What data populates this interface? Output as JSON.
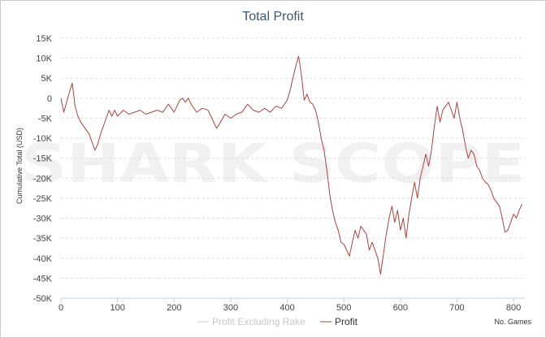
{
  "chart_data": {
    "type": "line",
    "title": "Total Profit",
    "xlabel": "No. Games",
    "ylabel": "Cumulative Total (USD)",
    "xlim": [
      0,
      820
    ],
    "ylim": [
      -50000,
      15000
    ],
    "x_ticks": [
      0,
      100,
      200,
      300,
      400,
      500,
      600,
      700,
      800
    ],
    "y_ticks": [
      15000,
      10000,
      5000,
      0,
      -5000,
      -10000,
      -15000,
      -20000,
      -25000,
      -30000,
      -35000,
      -40000,
      -45000,
      -50000
    ],
    "x_tick_labels": [
      "0",
      "100",
      "200",
      "300",
      "400",
      "500",
      "600",
      "700",
      "800"
    ],
    "y_tick_labels": [
      "15K",
      "10K",
      "5K",
      "0",
      "-5K",
      "-10K",
      "-15K",
      "-20K",
      "-25K",
      "-30K",
      "-35K",
      "-40K",
      "-45K",
      "-50K"
    ],
    "grid": "horizontal dashed",
    "legend_position": "bottom-center",
    "watermark": "SHARK SCOPE",
    "series": [
      {
        "name": "Profit Excluding Rake",
        "color": "#d3d3d3",
        "visible": false,
        "x": [],
        "y": []
      },
      {
        "name": "Profit",
        "color": "#a94442",
        "visible": true,
        "x": [
          0,
          5,
          10,
          15,
          20,
          25,
          30,
          35,
          40,
          45,
          50,
          55,
          60,
          65,
          70,
          75,
          80,
          85,
          90,
          95,
          100,
          110,
          120,
          130,
          140,
          150,
          160,
          170,
          180,
          190,
          200,
          210,
          215,
          220,
          225,
          230,
          240,
          250,
          260,
          270,
          275,
          280,
          290,
          300,
          310,
          320,
          330,
          340,
          350,
          360,
          370,
          380,
          390,
          395,
          400,
          405,
          410,
          415,
          420,
          425,
          430,
          435,
          440,
          445,
          450,
          455,
          460,
          465,
          470,
          475,
          480,
          485,
          490,
          495,
          500,
          505,
          510,
          515,
          520,
          525,
          530,
          540,
          545,
          550,
          555,
          560,
          565,
          570,
          575,
          580,
          585,
          590,
          595,
          600,
          605,
          610,
          615,
          620,
          625,
          630,
          635,
          640,
          645,
          650,
          655,
          660,
          665,
          670,
          675,
          680,
          685,
          690,
          695,
          700,
          705,
          710,
          715,
          720,
          725,
          730,
          735,
          740,
          745,
          750,
          755,
          760,
          765,
          770,
          775,
          780,
          785,
          790,
          795,
          800,
          805,
          810,
          815
        ],
        "y": [
          0,
          -3500,
          -1000,
          1500,
          3800,
          -2000,
          -4500,
          -6000,
          -7000,
          -8000,
          -9000,
          -11000,
          -13000,
          -11500,
          -9000,
          -7000,
          -5000,
          -3000,
          -4500,
          -3000,
          -4500,
          -3000,
          -4000,
          -3500,
          -3000,
          -4000,
          -3500,
          -3000,
          -3500,
          -1500,
          -3500,
          -500,
          0,
          -1000,
          0,
          -1500,
          -3500,
          -2500,
          -3000,
          -6000,
          -7500,
          -6500,
          -4000,
          -5000,
          -4000,
          -3500,
          -1500,
          -3000,
          -3500,
          -2500,
          -3500,
          -2000,
          -2500,
          -1500,
          -500,
          2000,
          5000,
          8000,
          10500,
          6000,
          -500,
          1000,
          -1000,
          -1500,
          -3000,
          -6000,
          -10000,
          -13000,
          -18000,
          -24000,
          -28000,
          -31000,
          -33000,
          -36000,
          -36500,
          -38000,
          -39500,
          -36000,
          -33000,
          -35000,
          -32000,
          -34000,
          -38000,
          -36000,
          -38000,
          -40000,
          -44000,
          -39000,
          -34000,
          -30000,
          -27000,
          -31000,
          -28000,
          -33000,
          -30000,
          -35000,
          -29000,
          -25000,
          -21000,
          -25000,
          -20000,
          -17000,
          -14000,
          -17000,
          -13000,
          -7000,
          -2000,
          -6000,
          -3000,
          -2000,
          -1000,
          -3000,
          -5000,
          -1000,
          -5000,
          -8000,
          -12000,
          -15000,
          -13000,
          -14000,
          -17000,
          -18000,
          -20000,
          -21000,
          -21500,
          -23000,
          -25000,
          -26000,
          -27000,
          -30000,
          -33500,
          -33000,
          -31000,
          -29000,
          -30000,
          -28000,
          -26500
        ]
      }
    ]
  }
}
